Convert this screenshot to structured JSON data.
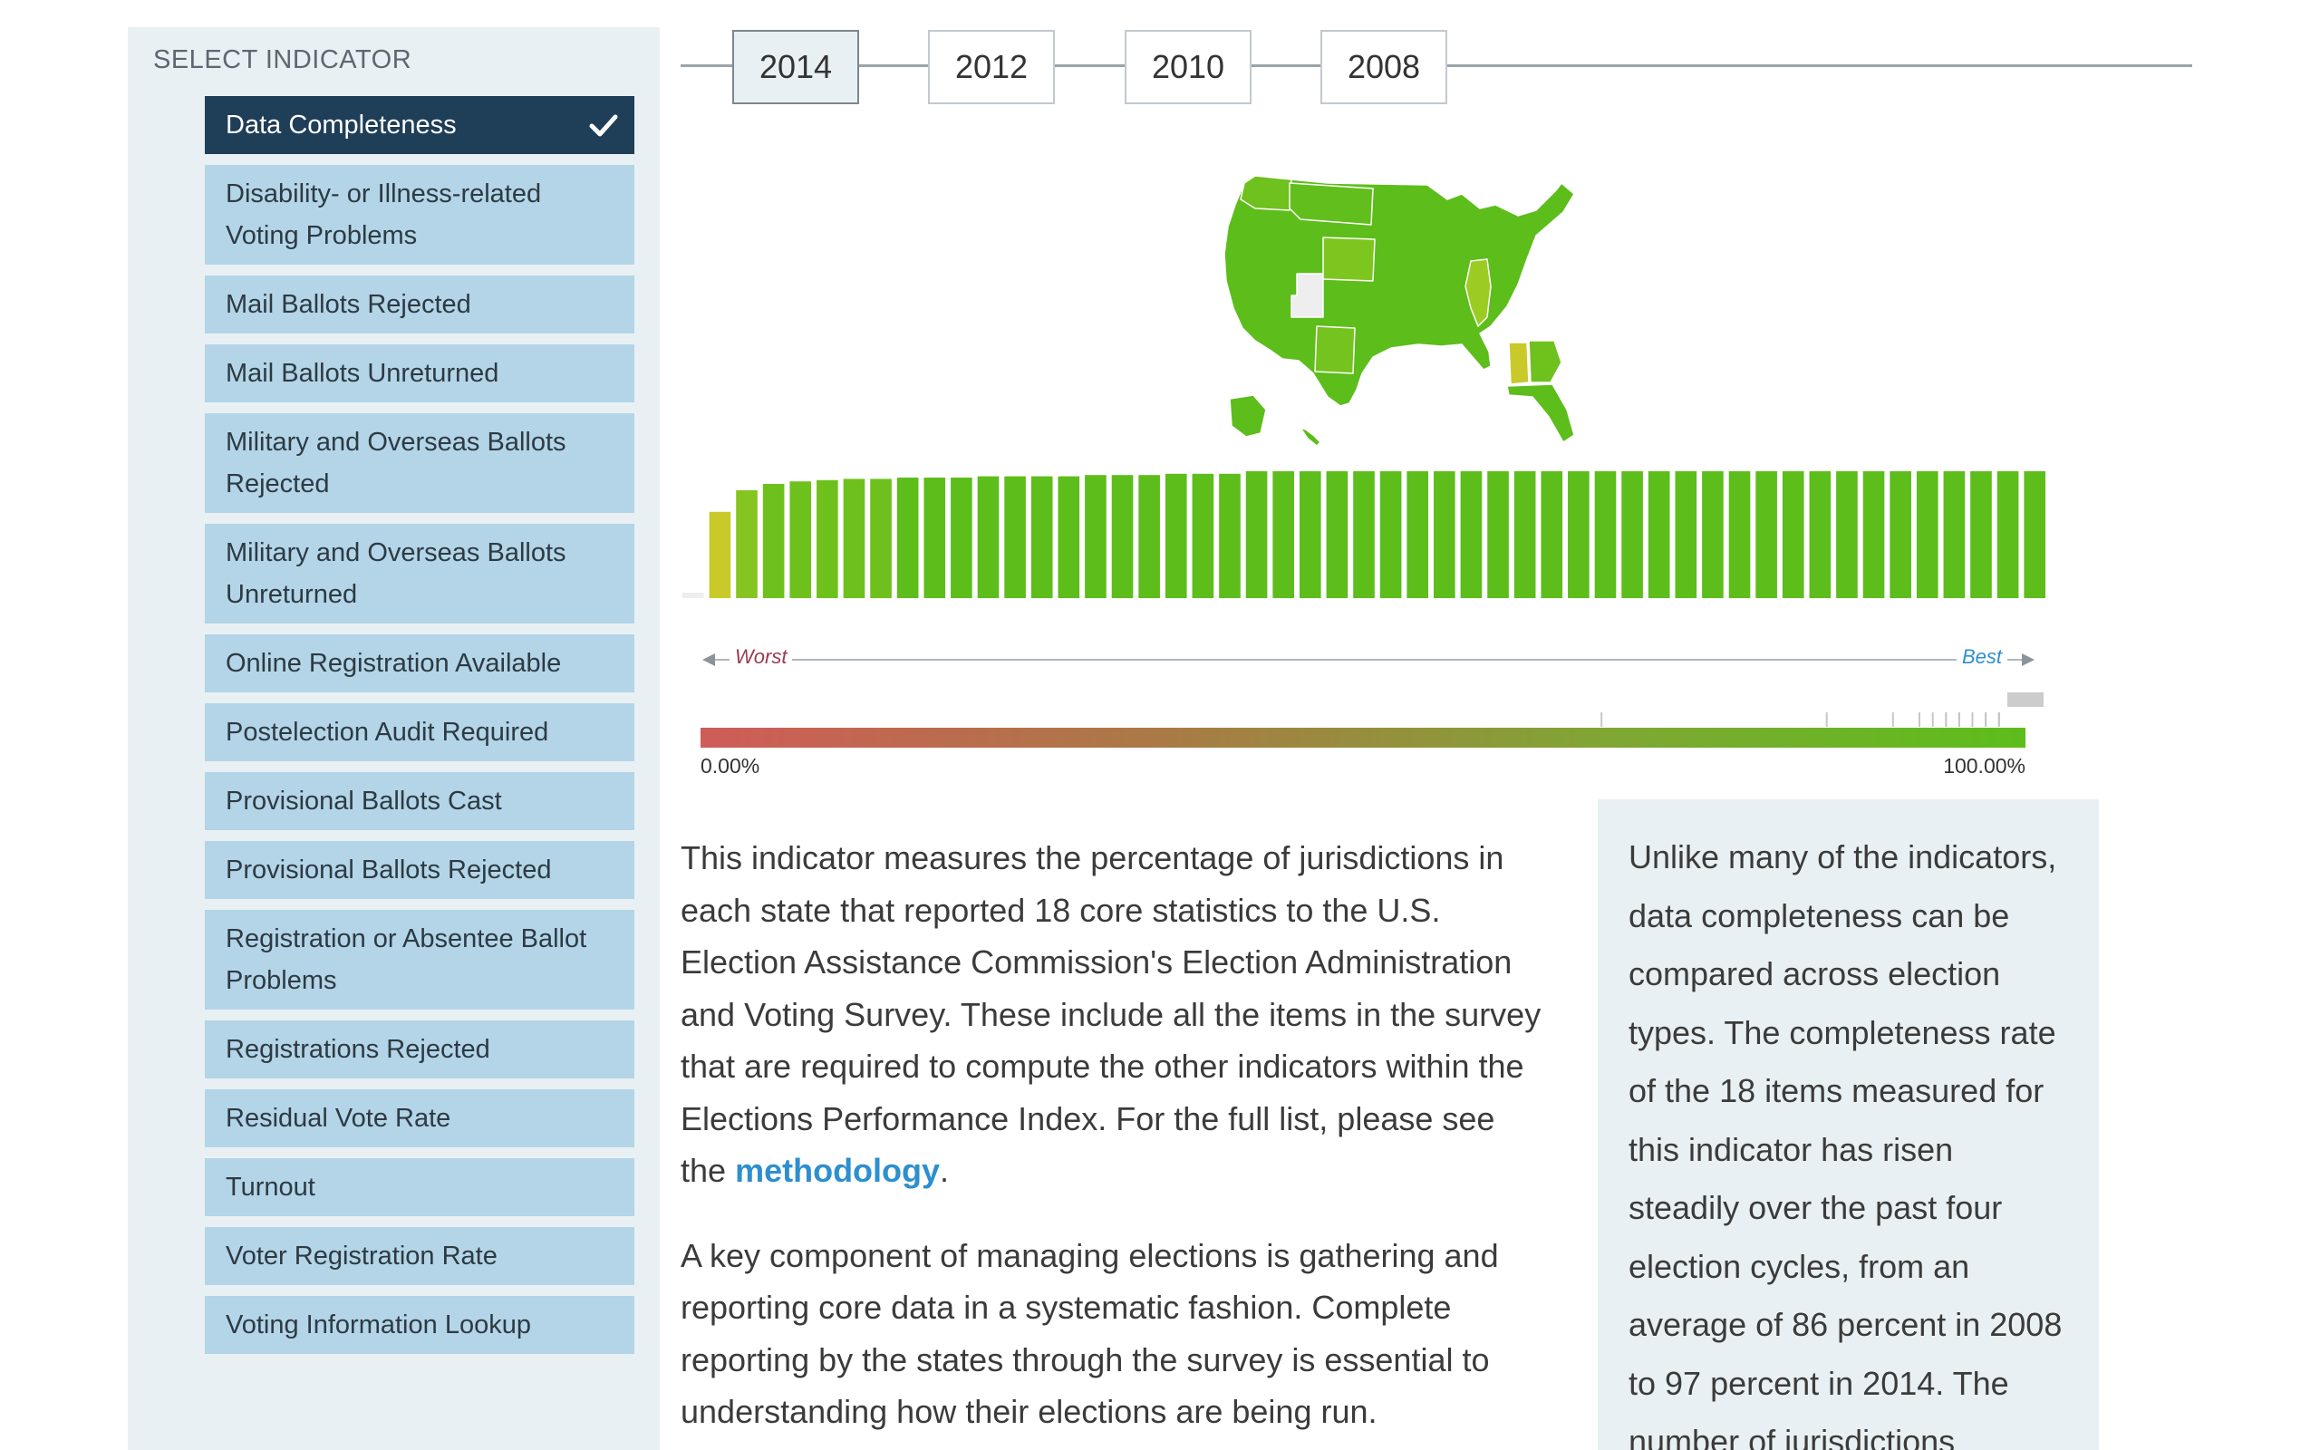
{
  "sidebar": {
    "title": "SELECT INDICATOR",
    "items": [
      {
        "label": "Data Completeness",
        "selected": true
      },
      {
        "label": "Disability- or Illness-related Voting Problems"
      },
      {
        "label": "Mail Ballots Rejected"
      },
      {
        "label": "Mail Ballots Unreturned"
      },
      {
        "label": "Military and Overseas Ballots Rejected"
      },
      {
        "label": "Military and Overseas Ballots Unreturned"
      },
      {
        "label": "Online Registration Available"
      },
      {
        "label": "Postelection Audit Required"
      },
      {
        "label": "Provisional Ballots Cast"
      },
      {
        "label": "Provisional Ballots Rejected"
      },
      {
        "label": "Registration or Absentee Ballot Problems"
      },
      {
        "label": "Registrations Rejected"
      },
      {
        "label": "Residual Vote Rate"
      },
      {
        "label": "Turnout"
      },
      {
        "label": "Voter Registration Rate"
      },
      {
        "label": "Voting Information Lookup"
      }
    ]
  },
  "years": {
    "tabs": [
      "2014",
      "2012",
      "2010",
      "2008"
    ],
    "selected": "2014"
  },
  "legend": {
    "worst": "Worst",
    "best": "Best",
    "min": "0.00%",
    "max": "100.00%"
  },
  "colors": {
    "best": "#5cbd1b",
    "worst": "#cf5c58",
    "mid": "#c9c92a",
    "no_data": "#eeeeee",
    "selected": "#1f3e57",
    "item": "#b3d5e7",
    "link": "#2e8fcf"
  },
  "chart_data": {
    "type": "bar",
    "description_free": true,
    "values": [
      0,
      68,
      85,
      90,
      92,
      93,
      94,
      94,
      95,
      95,
      95,
      96,
      96,
      96,
      96,
      97,
      97,
      97,
      98,
      98,
      98,
      100,
      100,
      100,
      100,
      100,
      100,
      100,
      100,
      100,
      100,
      100,
      100,
      100,
      100,
      100,
      100,
      100,
      100,
      100,
      100,
      100,
      100,
      100,
      100,
      100,
      100,
      100,
      100,
      100,
      100
    ],
    "ylim": [
      0,
      100
    ]
  },
  "content": {
    "p1": "This indicator measures the percentage of jurisdictions in each state that reported 18 core statistics to the U.S. Election Assistance Commission's Election Administration and Voting Survey. These include all the items in the survey that are required to compute the other indicators within the Elections Performance Index. For the full list, please see the",
    "p1_link": "methodology",
    "p1_end": ".",
    "p2": "A key component of managing elections is gathering and reporting core data in a systematic fashion. Complete reporting by the states through the survey is essential to understanding how their elections are being run.",
    "callout": "Unlike many of the indicators, data completeness can be compared across election types. The completeness rate of the 18 items measured for this indicator has risen steadily over the past four election cycles, from an average of 86 percent in 2008 to 97 percent in 2014. The number of jurisdictions"
  }
}
